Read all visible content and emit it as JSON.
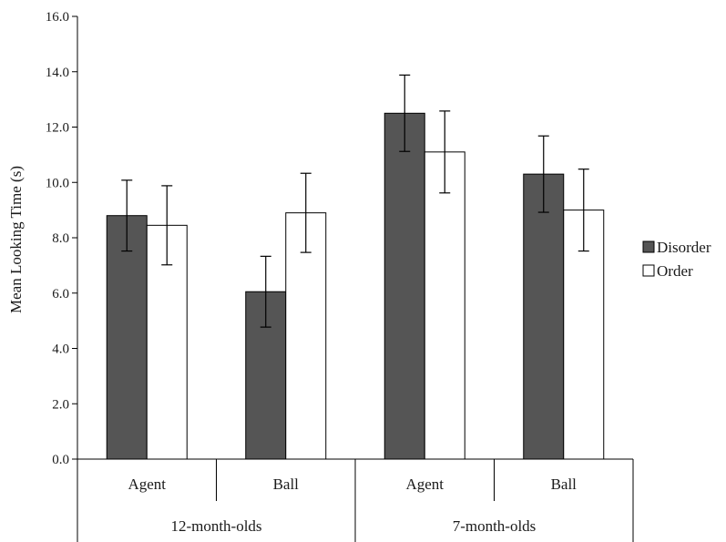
{
  "chart_data": {
    "type": "bar",
    "ylabel": "Mean Looking Time (s)",
    "xlabel": "",
    "ylim": [
      0,
      16
    ],
    "y_ticks": [
      "0.0",
      "2.0",
      "4.0",
      "6.0",
      "8.0",
      "10.0",
      "12.0",
      "14.0",
      "16.0"
    ],
    "y_tick_values": [
      0,
      2,
      4,
      6,
      8,
      10,
      12,
      14,
      16
    ],
    "grid": false,
    "legend_position": "right",
    "groups": [
      "12-month-olds",
      "7-month-olds"
    ],
    "categories": [
      "Agent",
      "Ball",
      "Agent",
      "Ball"
    ],
    "category_group": [
      0,
      0,
      1,
      1
    ],
    "series": [
      {
        "name": "Disorder",
        "color": "#555555",
        "values": [
          8.8,
          6.05,
          12.5,
          10.3
        ],
        "error": [
          1.28,
          1.28,
          1.38,
          1.38
        ]
      },
      {
        "name": "Order",
        "color": "#ffffff",
        "values": [
          8.45,
          8.9,
          11.1,
          9.0
        ],
        "error": [
          1.43,
          1.43,
          1.48,
          1.48
        ]
      }
    ]
  }
}
